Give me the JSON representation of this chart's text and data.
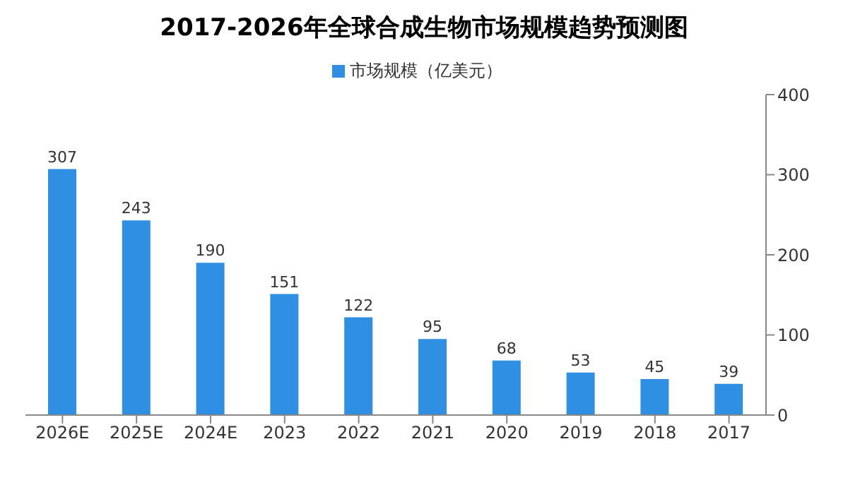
{
  "chart_data": {
    "type": "bar",
    "title": "2017-2026年全球合成生物市场规模趋势预测图",
    "categories": [
      "2026E",
      "2025E",
      "2024E",
      "2023",
      "2022",
      "2021",
      "2020",
      "2019",
      "2018",
      "2017"
    ],
    "series": [
      {
        "name": "市场规模（亿美元）",
        "color": "#2f8fe3",
        "values": [
          307,
          243,
          190,
          151,
          122,
          95,
          68,
          53,
          45,
          39
        ]
      }
    ],
    "ylim": [
      0,
      400
    ],
    "yticks": [
      0,
      100,
      200,
      300,
      400
    ],
    "grid": false,
    "legend": "top",
    "data_labels": true
  }
}
